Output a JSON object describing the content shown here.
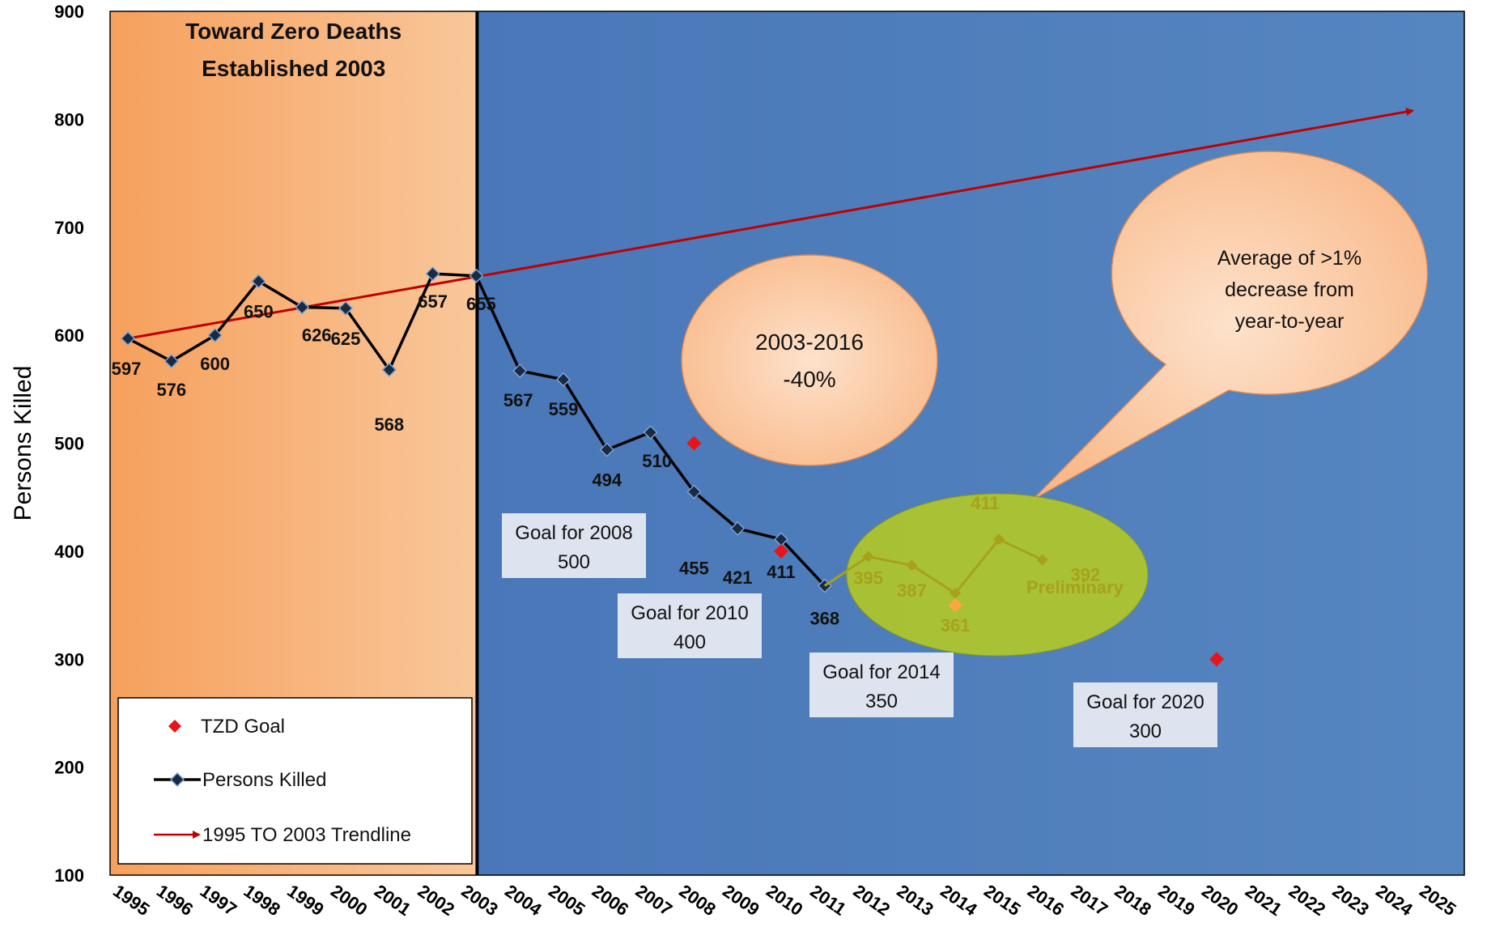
{
  "chart_data": {
    "type": "line",
    "ylabel": "Persons Killed",
    "ylim": [
      100,
      900
    ],
    "yticks": [
      100,
      200,
      300,
      400,
      500,
      600,
      700,
      800,
      900
    ],
    "xticks": [
      "1995",
      "1996",
      "1997",
      "1998",
      "1999",
      "2000",
      "2001",
      "2002",
      "2003",
      "2004",
      "2005",
      "2006",
      "2007",
      "2008",
      "2009",
      "2010",
      "2011",
      "2012",
      "2013",
      "2014",
      "2015",
      "2016",
      "2017",
      "2018",
      "2019",
      "2020",
      "2021",
      "2022",
      "2023",
      "2024",
      "2025"
    ],
    "band_title_line1": "Toward Zero Deaths",
    "band_title_line2": "Established 2003",
    "band_end_year": 2003,
    "series": [
      {
        "name": "Persons Killed",
        "points": [
          {
            "x": 1995,
            "y": 597,
            "label": "597"
          },
          {
            "x": 1996,
            "y": 576,
            "label": "576"
          },
          {
            "x": 1997,
            "y": 600,
            "label": "600"
          },
          {
            "x": 1998,
            "y": 650,
            "label": "650"
          },
          {
            "x": 1999,
            "y": 626,
            "label": "626"
          },
          {
            "x": 2000,
            "y": 625,
            "label": "625"
          },
          {
            "x": 2001,
            "y": 568,
            "label": "568"
          },
          {
            "x": 2002,
            "y": 657,
            "label": "657"
          },
          {
            "x": 2003,
            "y": 655,
            "label": "655"
          },
          {
            "x": 2004,
            "y": 567,
            "label": "567"
          },
          {
            "x": 2005,
            "y": 559,
            "label": "559"
          },
          {
            "x": 2006,
            "y": 494,
            "label": "494"
          },
          {
            "x": 2007,
            "y": 510,
            "label": "510"
          },
          {
            "x": 2008,
            "y": 455,
            "label": "455"
          },
          {
            "x": 2009,
            "y": 421,
            "label": "421"
          },
          {
            "x": 2010,
            "y": 411,
            "label": "411"
          },
          {
            "x": 2011,
            "y": 368,
            "label": "368"
          },
          {
            "x": 2012,
            "y": 395,
            "label": "395"
          },
          {
            "x": 2013,
            "y": 387,
            "label": "387"
          },
          {
            "x": 2014,
            "y": 361,
            "label": "361"
          },
          {
            "x": 2015,
            "y": 411,
            "label": "411"
          },
          {
            "x": 2016,
            "y": 392,
            "label": "392"
          }
        ]
      },
      {
        "name": "TZD Goal",
        "points": [
          {
            "x": 2008,
            "y": 500
          },
          {
            "x": 2010,
            "y": 400
          },
          {
            "x": 2014,
            "y": 350
          },
          {
            "x": 2020,
            "y": 300
          }
        ]
      },
      {
        "name": "1995 TO 2003 Trendline",
        "points": [
          {
            "x": 1995,
            "y": 597
          },
          {
            "x": 2024.5,
            "y": 808
          }
        ]
      }
    ],
    "preliminary_label": "Preliminary",
    "goal_boxes": [
      {
        "line1": "Goal for 2008",
        "line2": "500"
      },
      {
        "line1": "Goal for 2010",
        "line2": "400"
      },
      {
        "line1": "Goal for 2014",
        "line2": "350"
      },
      {
        "line1": "Goal for 2020",
        "line2": "300"
      }
    ],
    "bubble_change": {
      "line1": "2003-2016",
      "line2": "-40%"
    },
    "bubble_average": {
      "line1": "Average of >1%",
      "line2": "decrease from",
      "line3": "year-to-year"
    },
    "legend": [
      {
        "label": "TZD Goal"
      },
      {
        "label": "Persons Killed"
      },
      {
        "label": "1995 TO 2003 Trendline"
      }
    ],
    "colors": {
      "orange_band": "#f7a05a",
      "blue_area": "#4a7ab8",
      "series_line": "#000000",
      "marker": "#1a2a40",
      "goal": "#e8141c",
      "trend": "#c00000",
      "highlight": "#b4c81e",
      "bubble": "#fbc79c"
    }
  }
}
